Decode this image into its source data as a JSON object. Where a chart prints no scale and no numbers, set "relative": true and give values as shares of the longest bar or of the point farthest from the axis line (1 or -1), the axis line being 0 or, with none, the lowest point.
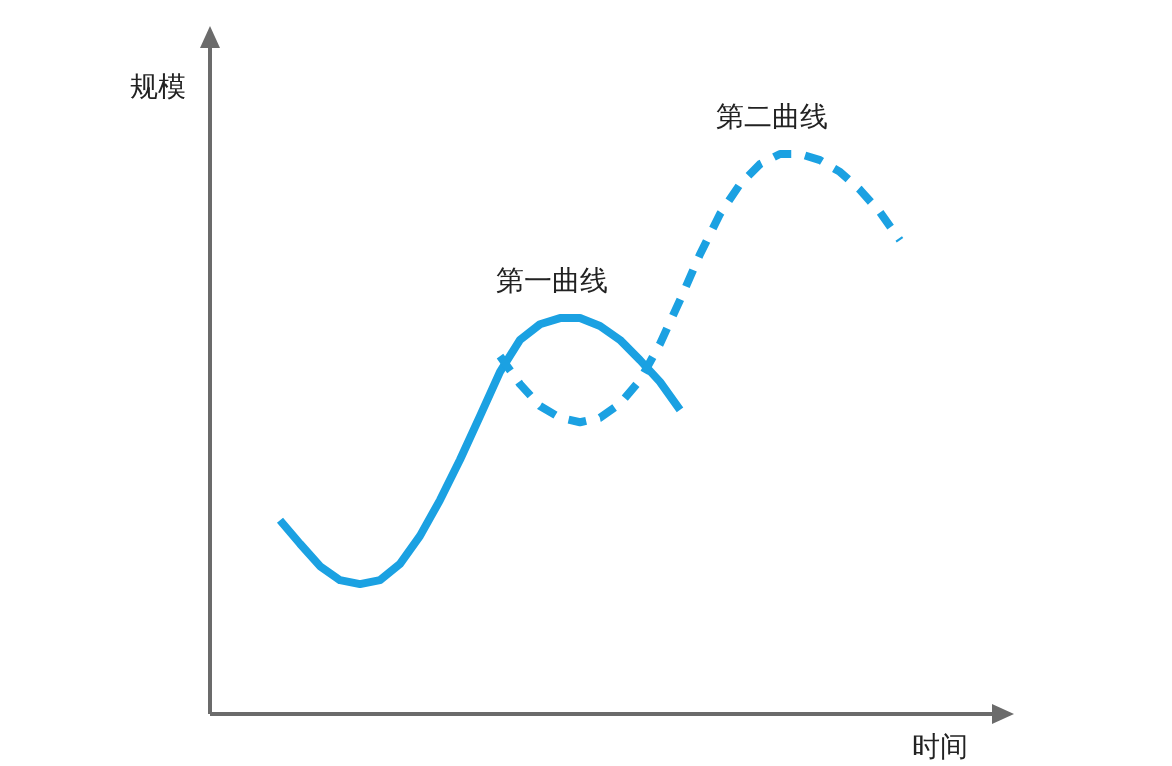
{
  "chart_data": {
    "type": "line",
    "relative": true,
    "xlabel": "时间",
    "ylabel": "规模",
    "grid": false,
    "legend": false,
    "marker": "none",
    "categories": [
      null,
      null,
      null,
      null,
      null,
      null,
      null,
      null,
      null,
      null,
      null,
      null,
      null,
      null,
      null,
      null,
      null,
      null,
      null,
      null,
      null,
      null,
      null,
      null,
      null,
      null,
      null,
      null,
      null,
      null,
      null,
      null
    ],
    "series": [
      {
        "name": "第一曲线",
        "color": "#1ba1e2",
        "line_style": "solid",
        "values": [
          0.346,
          0.304,
          0.264,
          0.239,
          0.232,
          0.239,
          0.268,
          0.318,
          0.382,
          0.454,
          0.532,
          0.611,
          0.668,
          0.696,
          0.707,
          0.707,
          0.693,
          0.668,
          0.632,
          0.593,
          0.543,
          null,
          null,
          null,
          null,
          null,
          null,
          null,
          null,
          null,
          null,
          null
        ]
      },
      {
        "name": "第二曲线",
        "color": "#1ba1e2",
        "line_style": "dashed",
        "values": [
          null,
          null,
          null,
          null,
          null,
          null,
          null,
          null,
          null,
          null,
          null,
          0.639,
          0.589,
          0.55,
          0.529,
          0.521,
          0.529,
          0.554,
          0.596,
          0.661,
          0.739,
          0.821,
          0.893,
          0.946,
          0.982,
          1.0,
          1.0,
          0.989,
          0.968,
          0.936,
          0.896,
          0.846
        ]
      }
    ]
  }
}
